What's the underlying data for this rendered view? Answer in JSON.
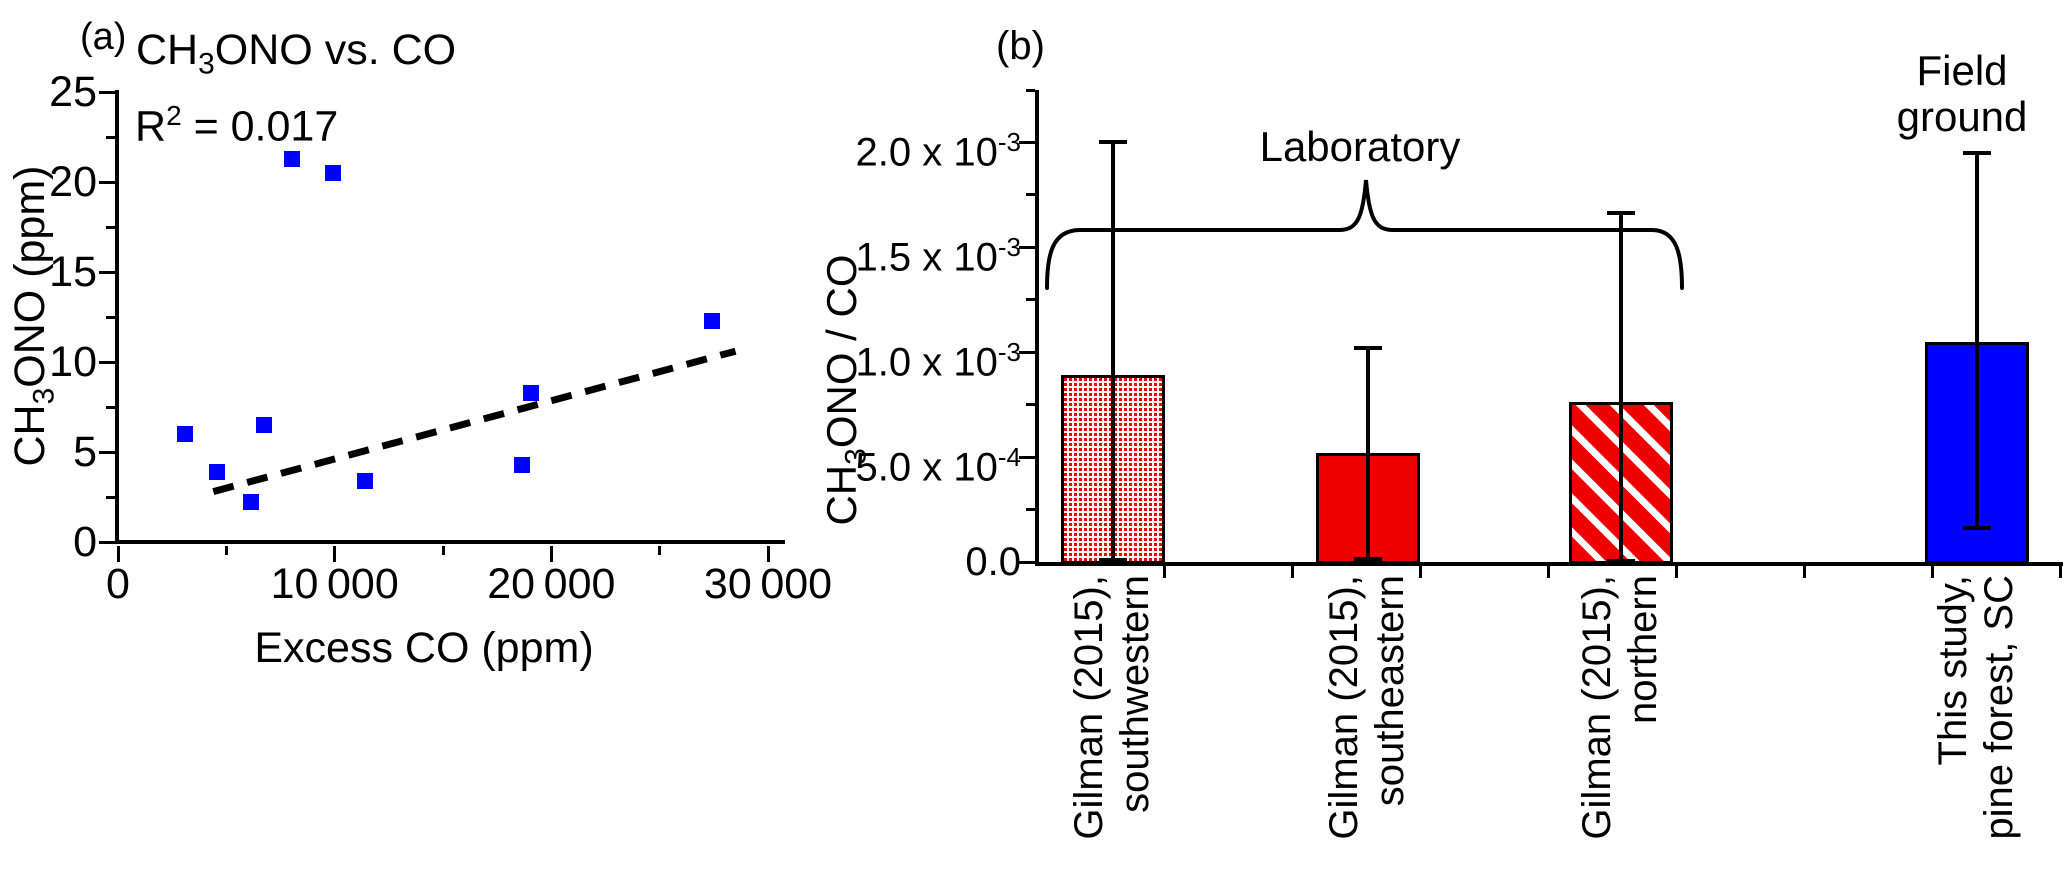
{
  "figure": {
    "background": "#ffffff",
    "panel_a_label": "(a)",
    "panel_b_label": "(b)"
  },
  "colors": {
    "marker_blue": "#0000ff",
    "bar_red": "#ee0000",
    "bar_blue": "#0000ff",
    "axis_black": "#000000",
    "trend_black": "#000000"
  },
  "chart_data": [
    {
      "type": "scatter",
      "panel": "a",
      "title": "CH3ONO vs. CO",
      "title_parts": {
        "prefix": "CH",
        "sub": "3",
        "suffix": "ONO vs. CO"
      },
      "annotation_parts": {
        "prefix": "R",
        "sup": "2",
        "suffix": " = 0.017"
      },
      "xlabel": "Excess CO (ppm)",
      "ylabel": "CH3ONO (ppm)",
      "ylabel_parts": {
        "prefix": "CH",
        "sub": "3",
        "suffix": "ONO (ppm)"
      },
      "xlim": [
        0,
        31000
      ],
      "ylim": [
        0,
        25
      ],
      "xticks": {
        "values": [
          0,
          10000,
          20000,
          30000
        ],
        "labels": [
          "0",
          "10 000",
          "20 000",
          "30 000"
        ],
        "minor_step": 5000
      },
      "yticks": {
        "values": [
          0,
          5,
          10,
          15,
          20,
          25
        ],
        "labels": [
          "0",
          "5",
          "10",
          "15",
          "20",
          "25"
        ],
        "minor_step": 2.5
      },
      "marker": "square",
      "points": [
        [
          3100,
          6.0
        ],
        [
          4550,
          3.9
        ],
        [
          6150,
          2.2
        ],
        [
          6750,
          6.5
        ],
        [
          8050,
          21.3
        ],
        [
          9900,
          20.5
        ],
        [
          11400,
          3.4
        ],
        [
          18650,
          4.3
        ],
        [
          19050,
          8.3
        ],
        [
          27400,
          12.3
        ]
      ],
      "trend_line": {
        "x1": 4400,
        "y1": 2.8,
        "x2": 28500,
        "y2": 10.6,
        "style": "dashed"
      }
    },
    {
      "type": "bar",
      "panel": "b",
      "ylabel": "CH3ONO / CO",
      "ylabel_parts": {
        "prefix": "CH",
        "sub": "3",
        "suffix": "ONO / CO"
      },
      "ylim": [
        0,
        0.00225
      ],
      "yticks": {
        "values": [
          0,
          0.0005,
          0.001,
          0.0015,
          0.002
        ],
        "labels": [
          {
            "m": "0.0",
            "e": ""
          },
          {
            "m": "5.0 x 10",
            "e": "-4"
          },
          {
            "m": "1.0 x 10",
            "e": "-3"
          },
          {
            "m": "1.5 x 10",
            "e": "-3"
          },
          {
            "m": "2.0 x 10",
            "e": "-3"
          }
        ],
        "minor_step": 0.00025
      },
      "bars": [
        {
          "label_line1": "Gilman (2015),",
          "label_line2": "southwestern",
          "value": 0.00089,
          "err_low": 1e-05,
          "err_high": 0.002,
          "fill": "mesh-red"
        },
        {
          "label_line1": "Gilman (2015),",
          "label_line2": "southeastern",
          "value": 0.00052,
          "err_low": 1.5e-05,
          "err_high": 0.00102,
          "fill": "solid-red"
        },
        {
          "label_line1": "Gilman (2015),",
          "label_line2": "northern",
          "value": 0.00076,
          "err_low": 5e-06,
          "err_high": 0.00166,
          "fill": "stripe-red"
        },
        {
          "label_line1": "This study,",
          "label_line2": "pine forest, SC",
          "value": 0.00105,
          "err_low": 0.00016,
          "err_high": 0.00195,
          "fill": "solid-blue"
        }
      ],
      "annotations": {
        "laboratory": "Laboratory",
        "field_line1": "Field",
        "field_line2": "ground"
      }
    }
  ]
}
